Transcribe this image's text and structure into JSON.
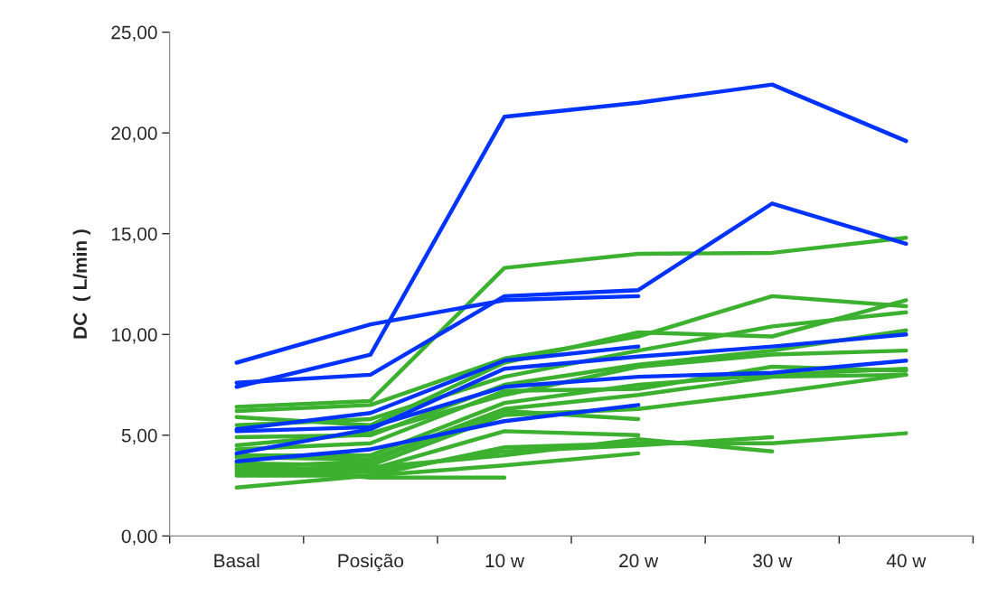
{
  "chart_data": {
    "type": "line",
    "ylabel": "DC  ( L/min )",
    "categories": [
      "Basal",
      "Posição",
      "10 w",
      "20 w",
      "30 w",
      "40 w"
    ],
    "ylim": [
      0,
      25
    ],
    "yticks": [
      {
        "value": 0,
        "label": "0,00"
      },
      {
        "value": 5,
        "label": "5,00"
      },
      {
        "value": 10,
        "label": "10,00"
      },
      {
        "value": 15,
        "label": "15,00"
      },
      {
        "value": 20,
        "label": "20,00"
      },
      {
        "value": 25,
        "label": "25,00"
      }
    ],
    "grid": false,
    "marker": "none",
    "line_style": "solid",
    "series": [
      {
        "color": "#3cb02f",
        "values": [
          6.4,
          6.7,
          13.3,
          14.0,
          14.05,
          14.8
        ]
      },
      {
        "color": "#3cb02f",
        "values": [
          6.2,
          6.5,
          8.8,
          9.9,
          11.9,
          11.4
        ]
      },
      {
        "color": "#3cb02f",
        "values": [
          5.9,
          5.5,
          8.6,
          10.1,
          9.9,
          11.7
        ]
      },
      {
        "color": "#3cb02f",
        "values": [
          5.5,
          5.8,
          7.9,
          9.2,
          10.4,
          11.1
        ]
      },
      {
        "color": "#3cb02f",
        "values": [
          4.9,
          5.0,
          7.5,
          8.5,
          9.2,
          10.2
        ]
      },
      {
        "color": "#3cb02f",
        "values": [
          4.5,
          5.1,
          7.0,
          8.4,
          9.0,
          9.2
        ]
      },
      {
        "color": "#3cb02f",
        "values": [
          4.3,
          4.6,
          7.2,
          7.3,
          8.4,
          8.2
        ]
      },
      {
        "color": "#3cb02f",
        "values": [
          4.0,
          4.0,
          6.6,
          7.5,
          8.0,
          8.3
        ]
      },
      {
        "color": "#3cb02f",
        "values": [
          3.9,
          3.8,
          6.3,
          7.0,
          7.9,
          8.0
        ]
      },
      {
        "color": "#3cb02f",
        "values": [
          3.6,
          3.5,
          6.0,
          6.3,
          7.1,
          8.0
        ]
      },
      {
        "color": "#3cb02f",
        "values": [
          3.4,
          3.7,
          6.2,
          5.8,
          null,
          null
        ]
      },
      {
        "color": "#3cb02f",
        "values": [
          3.2,
          3.3,
          5.2,
          5.0,
          null,
          null
        ]
      },
      {
        "color": "#3cb02f",
        "values": [
          3.0,
          3.0,
          4.4,
          4.6,
          4.6,
          5.1
        ]
      },
      {
        "color": "#3cb02f",
        "values": [
          3.1,
          3.2,
          4.2,
          4.5,
          4.9,
          null
        ]
      },
      {
        "color": "#3cb02f",
        "values": [
          3.3,
          3.4,
          4.0,
          4.8,
          4.2,
          null
        ]
      },
      {
        "color": "#3cb02f",
        "values": [
          2.4,
          3.0,
          3.5,
          4.1,
          null,
          null
        ]
      },
      {
        "color": "#3cb02f",
        "values": [
          3.5,
          2.9,
          2.9,
          null,
          null,
          null
        ]
      },
      {
        "color": "#0033ff",
        "values": [
          7.4,
          9.0,
          20.8,
          21.5,
          22.4,
          19.6
        ]
      },
      {
        "color": "#0033ff",
        "values": [
          8.6,
          10.5,
          11.7,
          11.9,
          null,
          null
        ]
      },
      {
        "color": "#0033ff",
        "values": [
          7.6,
          8.0,
          11.9,
          12.2,
          16.5,
          14.5
        ]
      },
      {
        "color": "#0033ff",
        "values": [
          5.3,
          6.1,
          8.7,
          9.4,
          null,
          null
        ]
      },
      {
        "color": "#0033ff",
        "values": [
          5.2,
          5.4,
          7.4,
          7.9,
          8.1,
          8.7
        ]
      },
      {
        "color": "#0033ff",
        "values": [
          4.1,
          5.3,
          8.3,
          8.9,
          9.4,
          10.0
        ]
      },
      {
        "color": "#0033ff",
        "values": [
          3.7,
          4.3,
          5.7,
          6.5,
          null,
          null
        ]
      }
    ]
  }
}
